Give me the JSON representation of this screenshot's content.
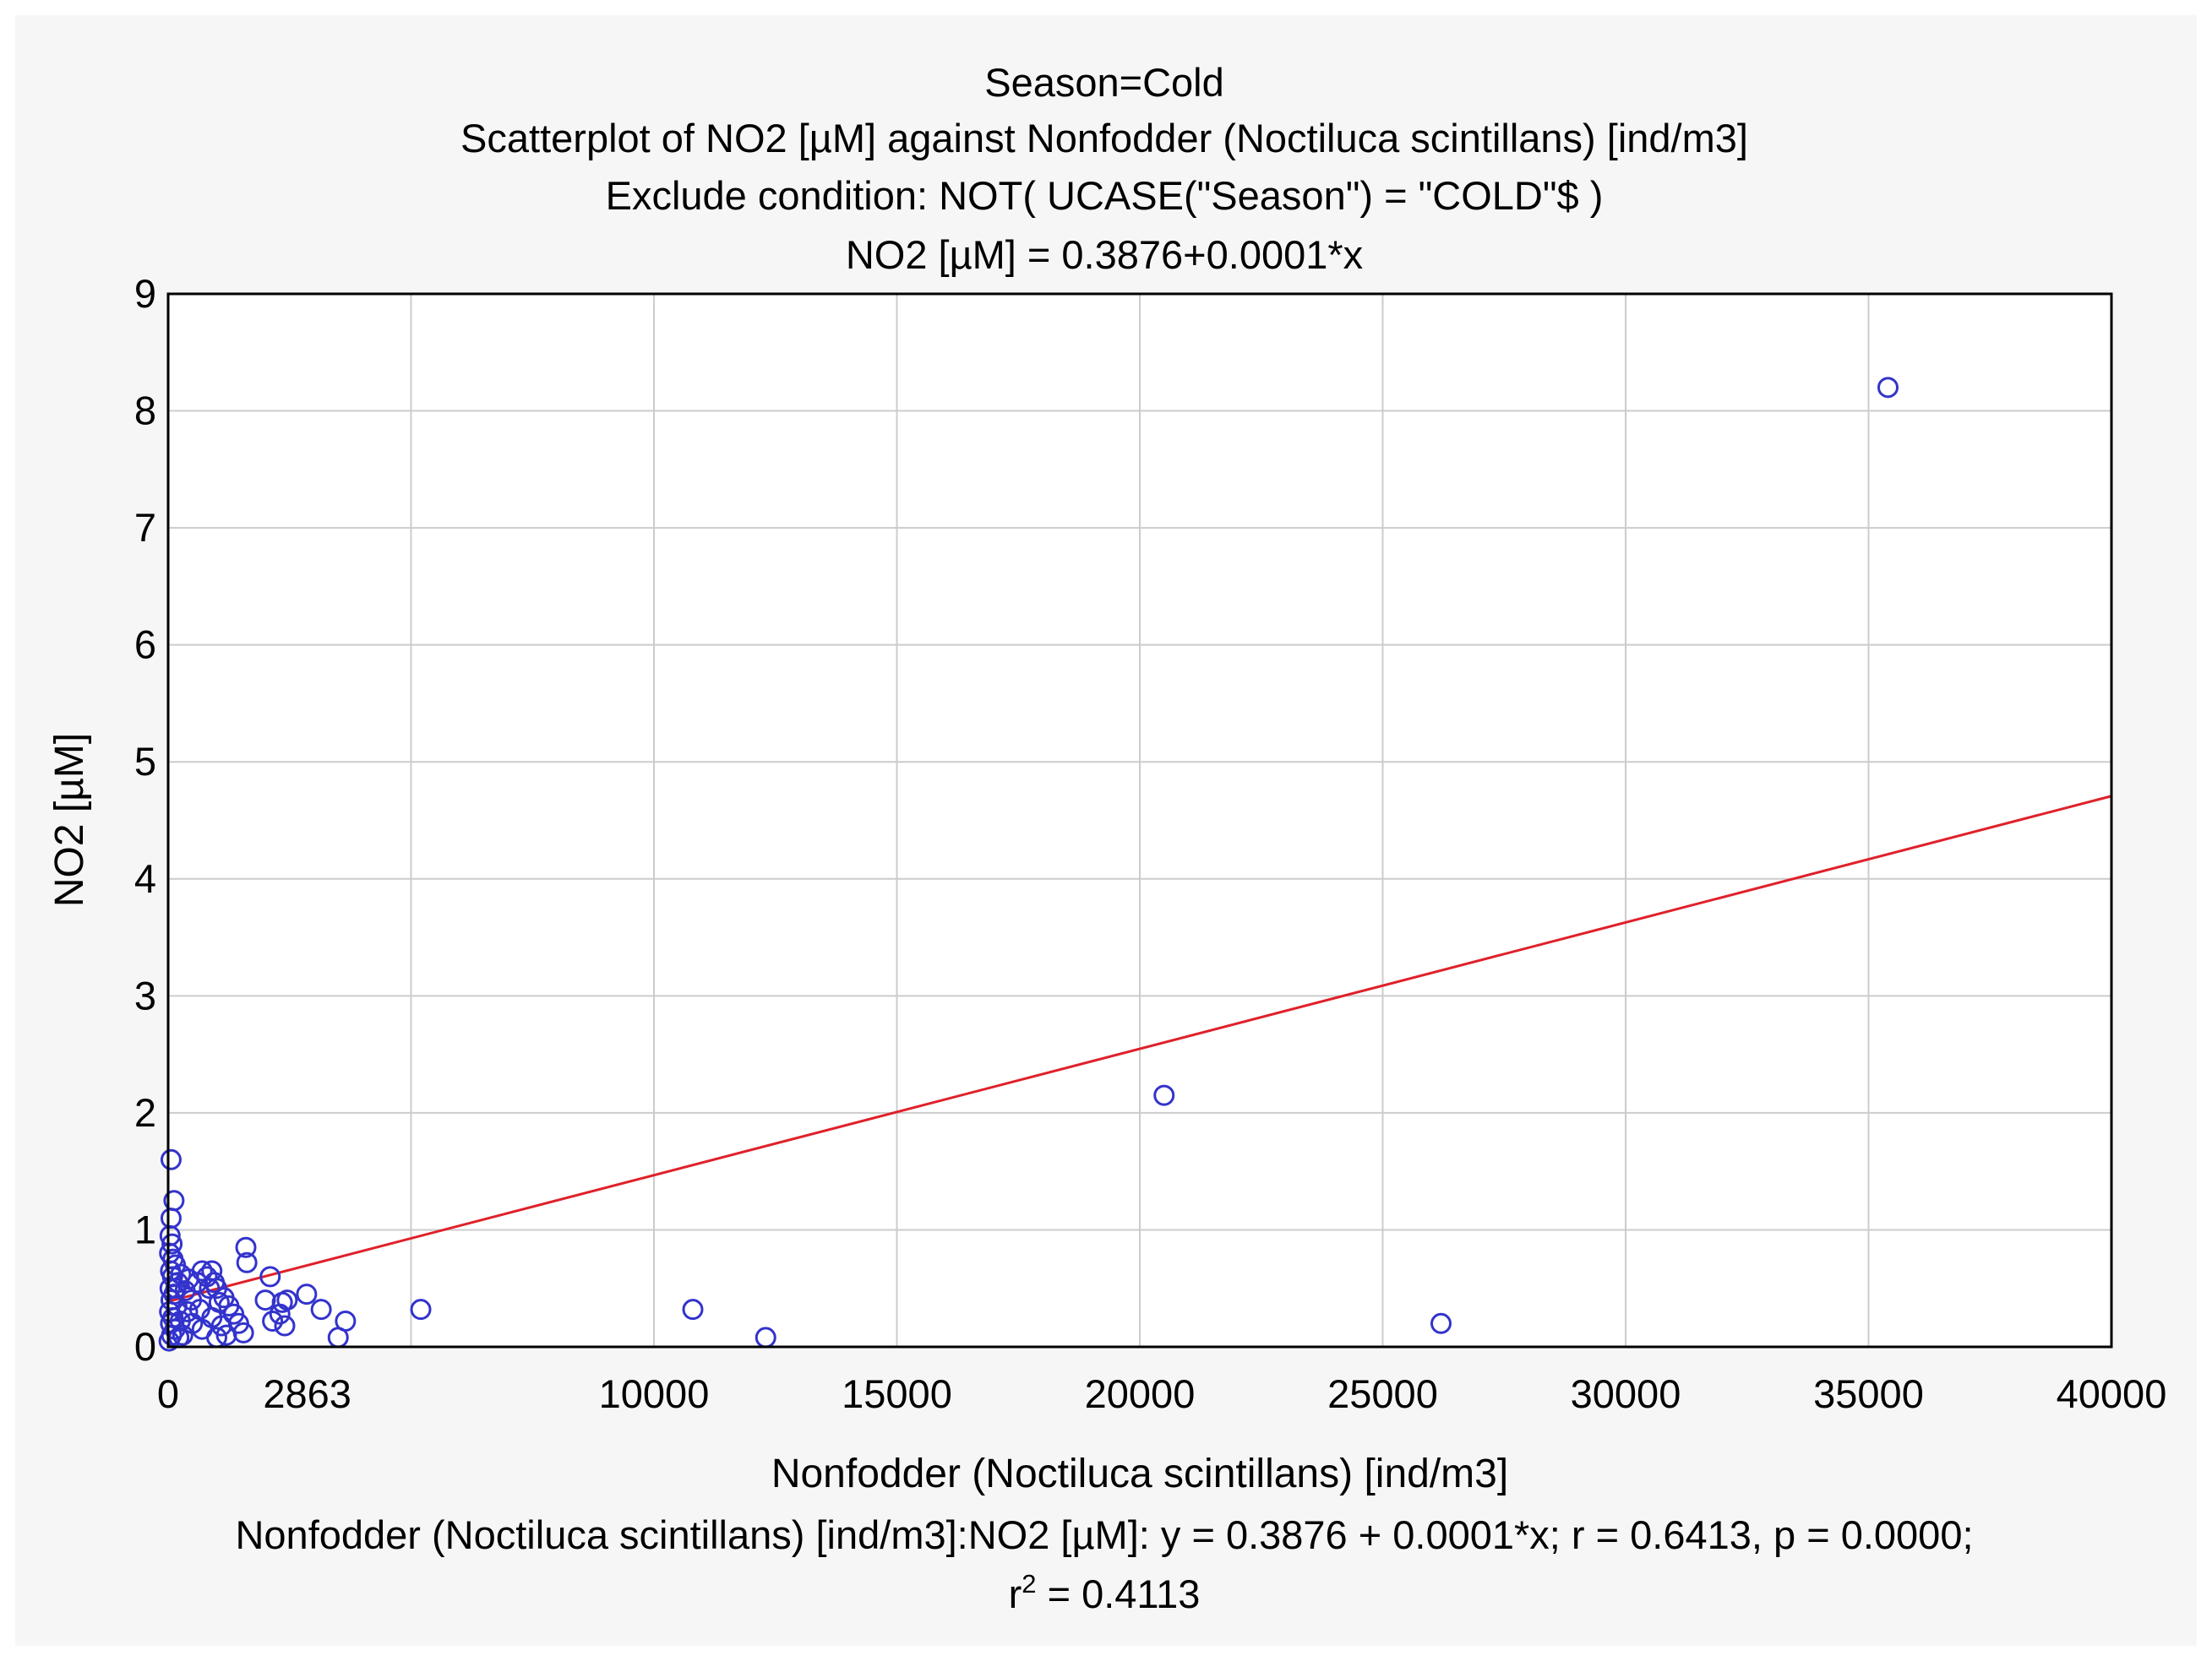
{
  "chart_data": {
    "type": "scatter",
    "title_lines": [
      "Season=Cold",
      "Scatterplot of NO2 [µM] against Nonfodder (Noctiluca scintillans) [ind/m3]",
      "Exclude condition: NOT( UCASE(\"Season\") = \"COLD\"$ )",
      "NO2 [µM] = 0.3876+0.0001*x"
    ],
    "xlabel": "Nonfodder (Noctiluca scintillans) [ind/m3]",
    "ylabel": "NO2 [µM]",
    "xlim": [
      0,
      40000
    ],
    "ylim": [
      0,
      9
    ],
    "x_ticks": [
      0,
      2863,
      10000,
      15000,
      20000,
      25000,
      30000,
      35000,
      40000
    ],
    "x_tick_labels": [
      "0",
      "2863",
      "10000",
      "15000",
      "20000",
      "25000",
      "30000",
      "35000",
      "40000"
    ],
    "x_gridlines": [
      5000,
      10000,
      15000,
      20000,
      25000,
      30000,
      35000
    ],
    "y_ticks": [
      0,
      1,
      2,
      3,
      4,
      5,
      6,
      7,
      8,
      9
    ],
    "y_tick_labels": [
      "0",
      "1",
      "2",
      "3",
      "4",
      "5",
      "6",
      "7",
      "8",
      "9"
    ],
    "grid": true,
    "fit_line": {
      "intercept": 0.3876,
      "slope": 0.000108,
      "color": "#e0202a"
    },
    "marker_color": "#3333cc",
    "series": [
      {
        "name": "NO2 [µM]",
        "points": [
          [
            35400,
            8.2
          ],
          [
            20500,
            2.15
          ],
          [
            26200,
            0.2
          ],
          [
            12300,
            0.08
          ],
          [
            10800,
            0.32
          ],
          [
            5200,
            0.32
          ],
          [
            60,
            1.6
          ],
          [
            120,
            1.25
          ],
          [
            60,
            1.1
          ],
          [
            40,
            0.95
          ],
          [
            80,
            0.88
          ],
          [
            30,
            0.8
          ],
          [
            100,
            0.75
          ],
          [
            150,
            0.7
          ],
          [
            50,
            0.65
          ],
          [
            90,
            0.6
          ],
          [
            200,
            0.55
          ],
          [
            40,
            0.5
          ],
          [
            120,
            0.45
          ],
          [
            60,
            0.4
          ],
          [
            180,
            0.35
          ],
          [
            30,
            0.3
          ],
          [
            100,
            0.25
          ],
          [
            50,
            0.2
          ],
          [
            140,
            0.15
          ],
          [
            70,
            0.1
          ],
          [
            20,
            0.05
          ],
          [
            260,
            0.62
          ],
          [
            350,
            0.48
          ],
          [
            420,
            0.58
          ],
          [
            480,
            0.4
          ],
          [
            600,
            0.55
          ],
          [
            700,
            0.65
          ],
          [
            800,
            0.6
          ],
          [
            850,
            0.5
          ],
          [
            900,
            0.65
          ],
          [
            950,
            0.55
          ],
          [
            1000,
            0.5
          ],
          [
            1050,
            0.38
          ],
          [
            1150,
            0.42
          ],
          [
            1250,
            0.35
          ],
          [
            1350,
            0.28
          ],
          [
            1450,
            0.2
          ],
          [
            1550,
            0.12
          ],
          [
            1600,
            0.85
          ],
          [
            1620,
            0.72
          ],
          [
            1200,
            0.1
          ],
          [
            900,
            0.25
          ],
          [
            700,
            0.15
          ],
          [
            500,
            0.2
          ],
          [
            400,
            0.3
          ],
          [
            300,
            0.1
          ],
          [
            2000,
            0.4
          ],
          [
            2100,
            0.6
          ],
          [
            2150,
            0.22
          ],
          [
            2300,
            0.28
          ],
          [
            2350,
            0.38
          ],
          [
            2400,
            0.18
          ],
          [
            2450,
            0.4
          ],
          [
            2850,
            0.45
          ],
          [
            3150,
            0.32
          ],
          [
            3500,
            0.08
          ],
          [
            3650,
            0.22
          ],
          [
            1000,
            0.08
          ],
          [
            1100,
            0.18
          ],
          [
            650,
            0.32
          ],
          [
            250,
            0.22
          ],
          [
            160,
            0.5
          ],
          [
            220,
            0.08
          ]
        ]
      }
    ],
    "footer_text": "Nonfodder (Noctiluca scintillans) [ind/m3]:NO2 [µM]:   y = 0.3876 + 0.0001*x;  r = 0.6413, p = 0.0000;",
    "r_squared_prefix": "r",
    "r_squared_exponent": "2",
    "r_squared_value": " = 0.4113"
  }
}
